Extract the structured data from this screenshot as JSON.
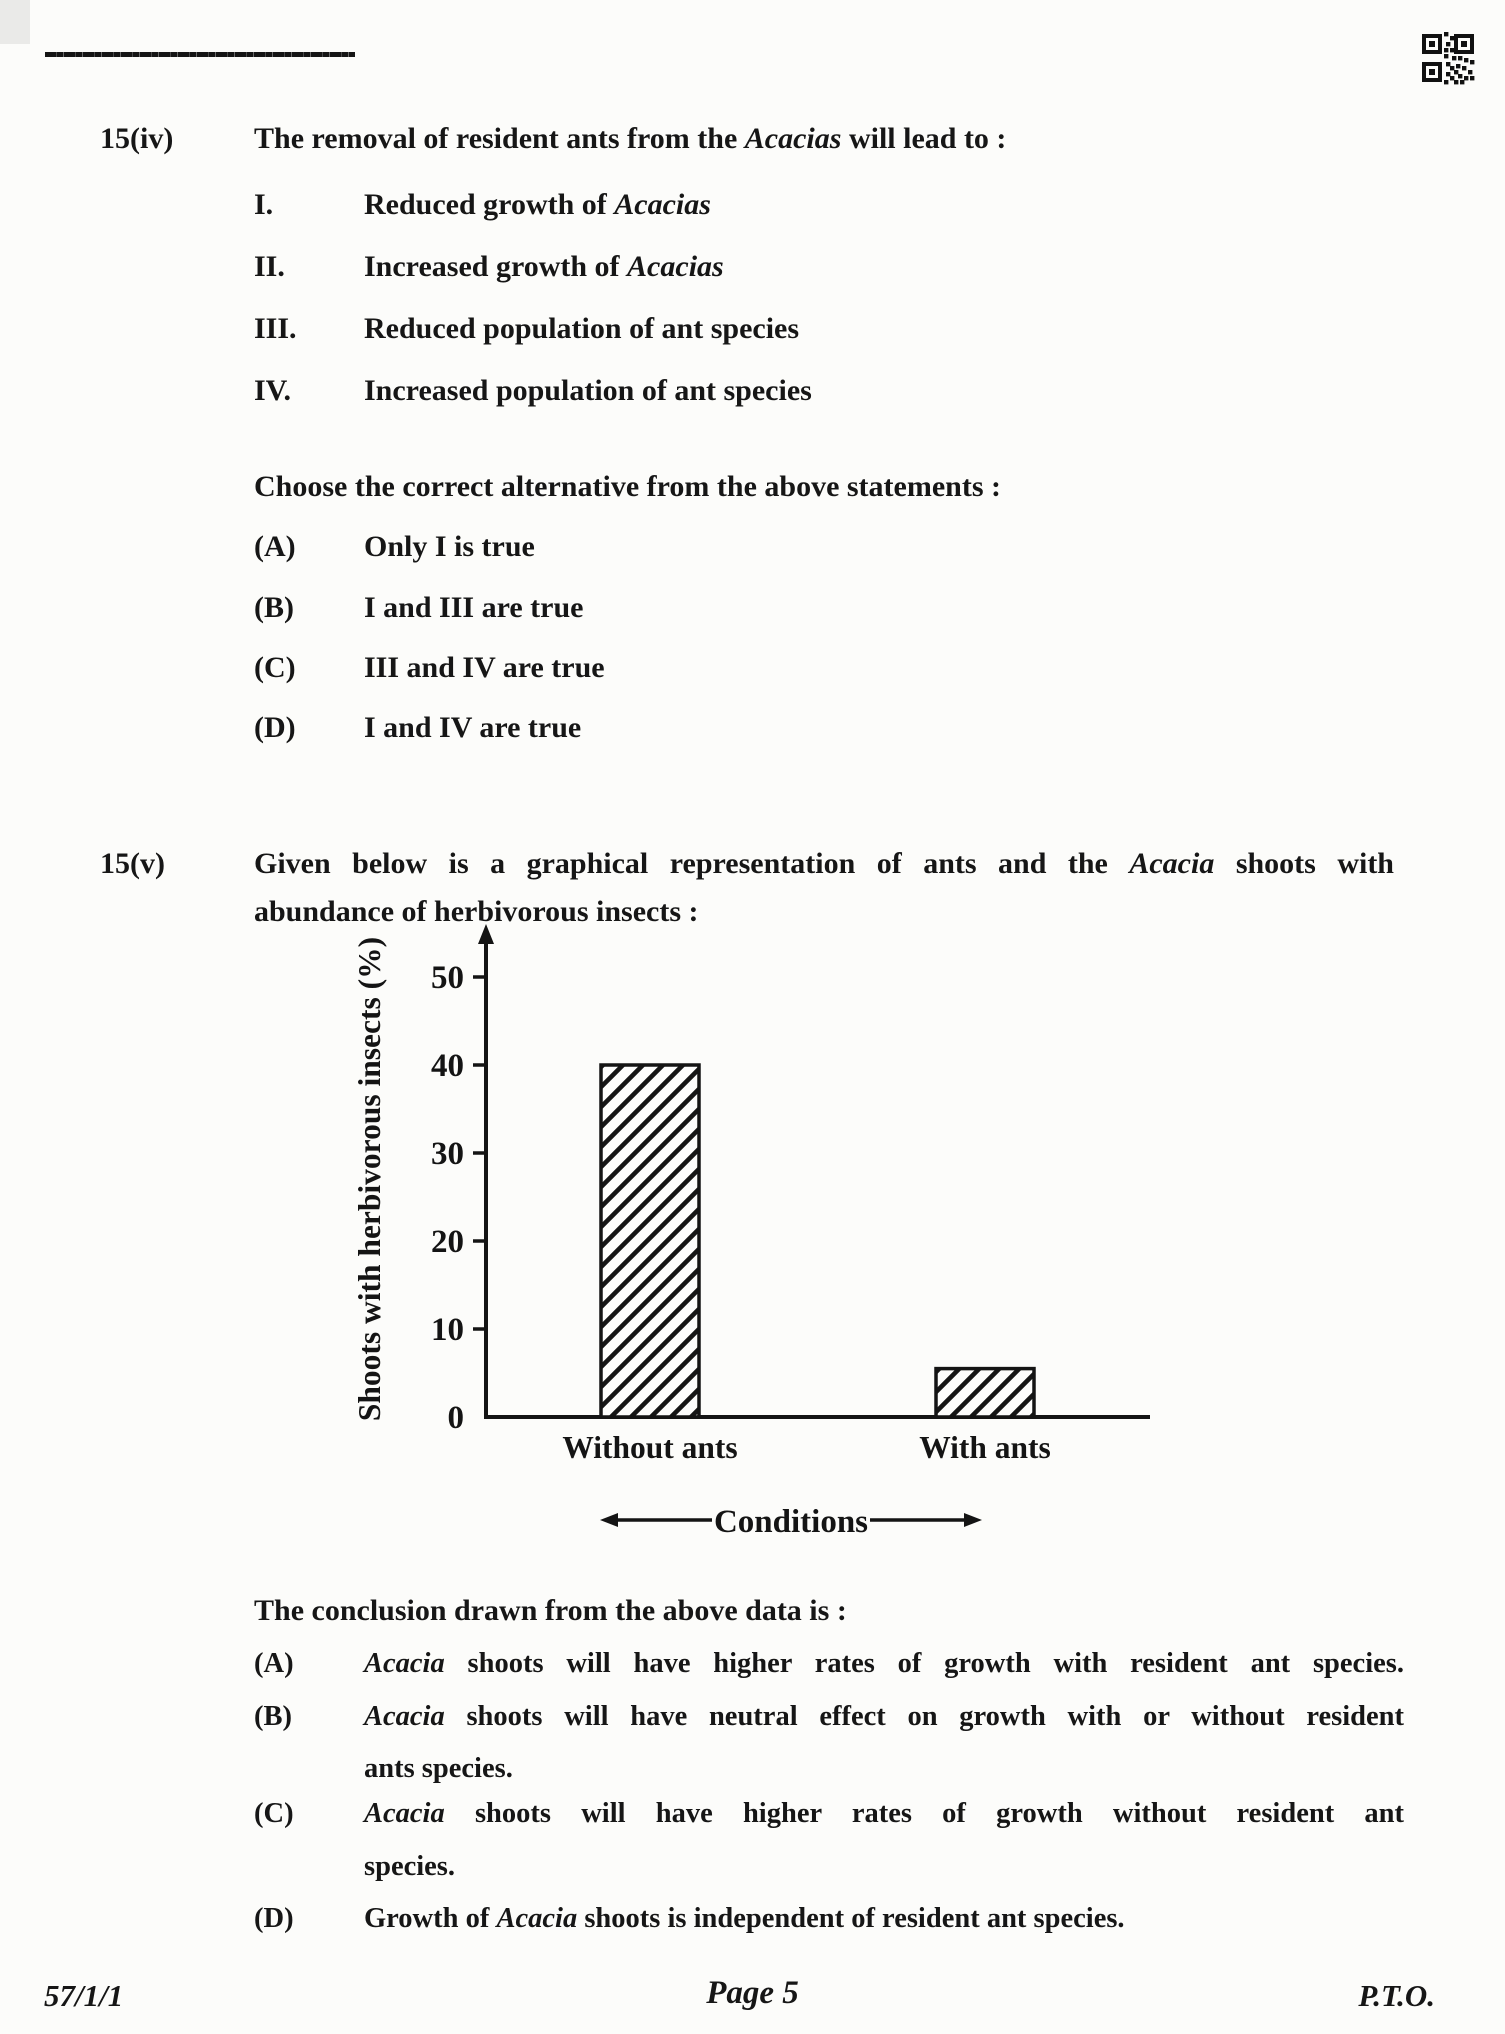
{
  "icons": {
    "qr": "qr-code",
    "dash_line": "dashed-rule",
    "y_axis_arrow": "up-arrow",
    "conditions_arrows": "left-right-arrows"
  },
  "q15iv": {
    "number": "15(iv)",
    "q_pre": "The removal of resident ants from the ",
    "q_it": "Acacias",
    "q_post": " will lead to :",
    "statements": [
      {
        "numeral": "I.",
        "pre": "Reduced growth of ",
        "it": "Acacias"
      },
      {
        "numeral": "II.",
        "pre": "Increased growth of ",
        "it": "Acacias"
      },
      {
        "numeral": "III.",
        "pre": "Reduced population of ant species",
        "it": ""
      },
      {
        "numeral": "IV.",
        "pre": "Increased population of ant species",
        "it": ""
      }
    ],
    "choose": "Choose the correct alternative from the above statements :",
    "options": [
      {
        "letter": "(A)",
        "text": "Only I is true"
      },
      {
        "letter": "(B)",
        "text": "I and III are true"
      },
      {
        "letter": "(C)",
        "text": "III and IV are true"
      },
      {
        "letter": "(D)",
        "text": "I and IV are true"
      }
    ]
  },
  "q15v": {
    "number": "15(v)",
    "line1_pre": "Given below is a graphical representation of ants and the ",
    "line1_it": "Acacia",
    "line1_post": " shoots with",
    "line2": "abundance of herbivorous insects :",
    "conclusion_heading": "The conclusion drawn from the above data is :",
    "options": [
      {
        "letter": "(A)",
        "pre": "",
        "it": "Acacia",
        "l1": " shoots will have higher rates of growth with resident ant species.",
        "l2": ""
      },
      {
        "letter": "(B)",
        "pre": "",
        "it": "Acacia",
        "l1": " shoots will have neutral effect on growth with or without resident",
        "l2": "ants species."
      },
      {
        "letter": "(C)",
        "pre": "",
        "it": "Acacia",
        "l1": " shoots will have higher rates of growth without resident ant",
        "l2": "species."
      },
      {
        "letter": "(D)",
        "pre": "Growth of ",
        "it": "Acacia",
        "l1": " shoots is independent of resident ant species.",
        "l2": ""
      }
    ]
  },
  "chart_data": {
    "type": "bar",
    "categories": [
      "Without ants",
      "With ants"
    ],
    "values": [
      40,
      5.5
    ],
    "title": "",
    "xlabel": "Conditions",
    "ylabel": "Shoots with herbivorous insects (%)",
    "yticks": [
      0,
      10,
      20,
      30,
      40,
      50
    ],
    "ylim": [
      0,
      55
    ],
    "grid": false,
    "legend": false,
    "bar_fill": "diagonal-hatch",
    "bar_color": "#141414",
    "axis_color": "#141414"
  },
  "footer": {
    "paper_code": "57/1/1",
    "page_label": "Page 5",
    "pto": "P.T.O."
  }
}
